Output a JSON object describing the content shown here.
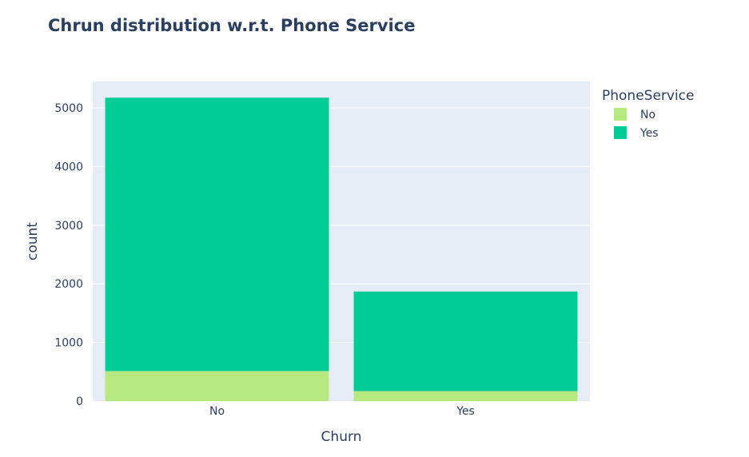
{
  "chart_data": {
    "type": "bar",
    "barmode": "stack",
    "title": "Chrun distribution w.r.t. Phone Service",
    "xlabel": "Churn",
    "ylabel": "count",
    "categories": [
      "No",
      "Yes"
    ],
    "series": [
      {
        "name": "No",
        "values": [
          512,
          170
        ],
        "color": "#b6e880"
      },
      {
        "name": "Yes",
        "values": [
          4662,
          1699
        ],
        "color": "#00cc96"
      }
    ],
    "ylim": [
      0,
      5450
    ],
    "yticks": [
      0,
      1000,
      2000,
      3000,
      4000,
      5000
    ],
    "ytick_labels": [
      "0",
      "1000",
      "2000",
      "3000",
      "4000",
      "5000"
    ],
    "legend": {
      "title": "PhoneService",
      "position": "top-right"
    },
    "grid": true,
    "plot_bgcolor": "#e5ecf6"
  }
}
